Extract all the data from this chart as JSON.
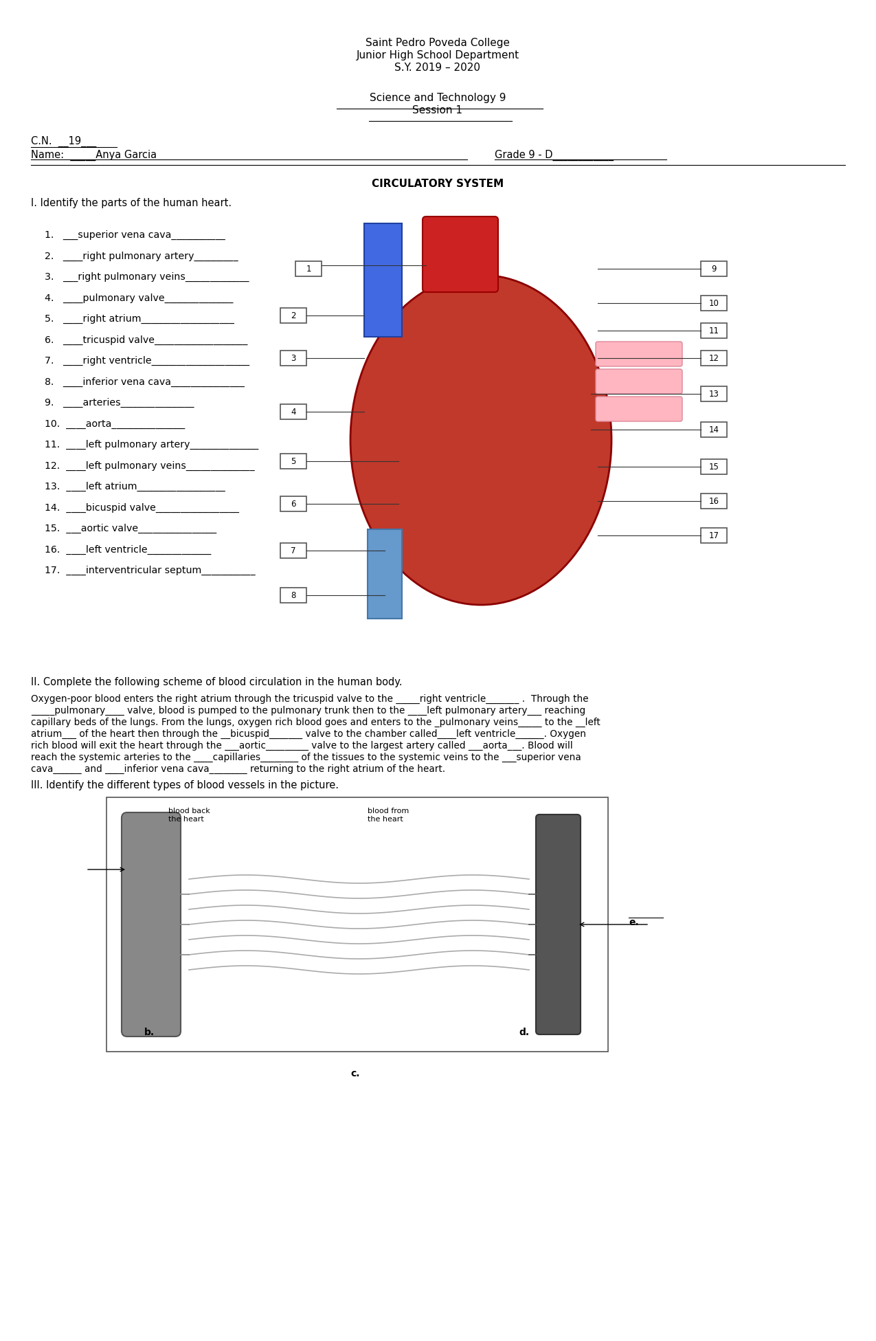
{
  "header_line1": "Saint Pedro Poveda College",
  "header_line2": "Junior High School Department",
  "header_line3": "S.Y. 2019 – 2020",
  "subject_line1": "Science and Technology 9",
  "subject_line2": "Session 1",
  "cn_label": "C.N.  __19___",
  "name_label": "Name:  _____Anya Garcia",
  "grade_label": "Grade 9 - D____________",
  "title": "CIRCULATORY SYSTEM",
  "section_I": "I. Identify the parts of the human heart.",
  "items": [
    "1.   ___superior vena cava___________",
    "2.   ____right pulmonary artery_________",
    "3.   ___right pulmonary veins_____________",
    "4.   ____pulmonary valve______________",
    "5.   ____right atrium___________________",
    "6.   ____tricuspid valve___________________",
    "7.   ____right ventricle____________________",
    "8.   ____inferior vena cava_______________",
    "9.   ____arteries_______________",
    "10.  ____aorta_______________",
    "11.  ____left pulmonary artery______________",
    "12.  ____left pulmonary veins______________",
    "13.  ____left atrium__________________",
    "14.  ____bicuspid valve_________________",
    "15.  ___aortic valve________________",
    "16.  ____left ventricle_____________",
    "17.  ____interventricular septum___________"
  ],
  "section_II": "II. Complete the following scheme of blood circulation in the human body.",
  "para1": "Oxygen-poor blood enters the right atrium through the tricuspid valve to the _____right ventricle_______ .  Through the\n_____pulmonary____ valve, blood is pumped to the pulmonary trunk then to the ____left pulmonary artery___ reaching\ncapillary beds of the lungs. From the lungs, oxygen rich blood goes and enters to the _pulmonary veins______ to the __left\natrium___ of the heart then through the __bicuspid_______ valve to the chamber called____left ventricle______. Oxygen\nrich blood will exit the heart through the ___aortic_________ valve to the largest artery called ___aorta___. Blood will\nreach the systemic arteries to the ____capillaries________ of the tissues to the systemic veins to the ___superior vena\ncava______ and ____inferior vena cava________ returning to the right atrium of the heart.",
  "section_III": "III. Identify the different types of blood vessels in the picture.",
  "vessel_labels": [
    "b.",
    "c.",
    "d.",
    "e."
  ],
  "vessel_image_placeholder": true,
  "bg_color": "#ffffff",
  "text_color": "#000000",
  "font_size_header": 11,
  "font_size_body": 10
}
